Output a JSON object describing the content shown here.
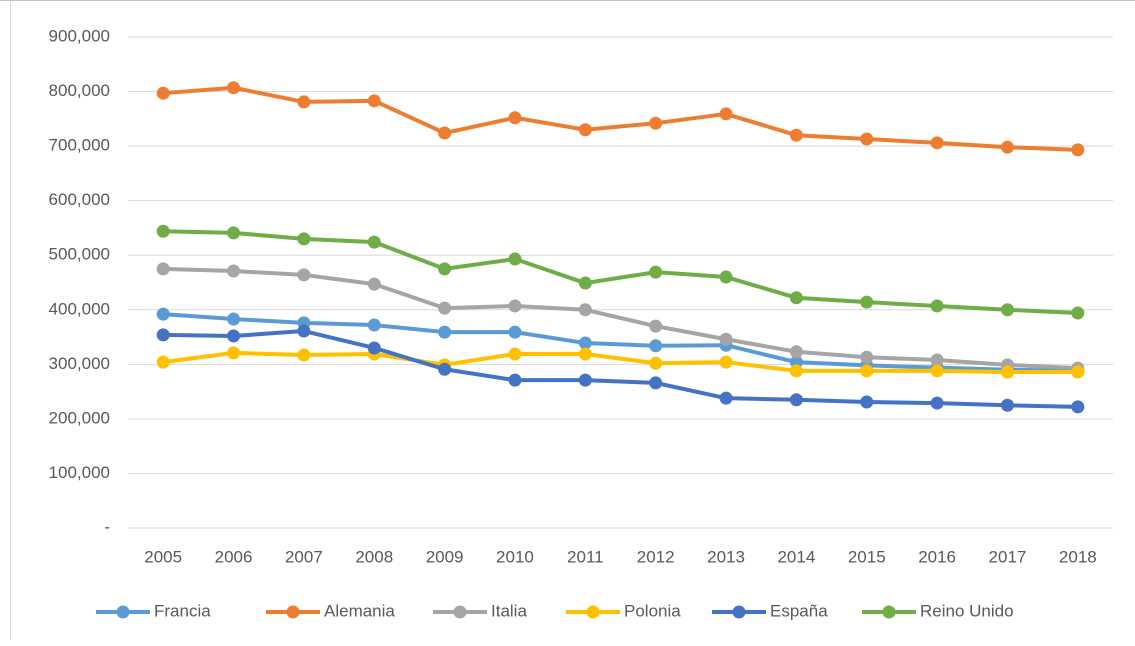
{
  "chart_data": {
    "type": "line",
    "categories": [
      "2005",
      "2006",
      "2007",
      "2008",
      "2009",
      "2010",
      "2011",
      "2012",
      "2013",
      "2014",
      "2015",
      "2016",
      "2017",
      "2018"
    ],
    "series": [
      {
        "name": "Francia",
        "color": "#5b9bd5",
        "values": [
          392000,
          383000,
          376000,
          372000,
          359000,
          359000,
          339000,
          334000,
          335000,
          304000,
          298000,
          294000,
          290000,
          288000
        ]
      },
      {
        "name": "Alemania",
        "color": "#ed7d31",
        "values": [
          797000,
          807000,
          781000,
          783000,
          724000,
          752000,
          730000,
          742000,
          759000,
          720000,
          713000,
          706000,
          698000,
          693000
        ]
      },
      {
        "name": "Italia",
        "color": "#a5a5a5",
        "values": [
          475000,
          471000,
          464000,
          447000,
          403000,
          407000,
          400000,
          370000,
          346000,
          323000,
          313000,
          308000,
          299000,
          293000
        ]
      },
      {
        "name": "Polonia",
        "color": "#ffc000",
        "values": [
          304000,
          321000,
          317000,
          319000,
          299000,
          319000,
          319000,
          302000,
          304000,
          288000,
          288000,
          288000,
          286000,
          286000
        ]
      },
      {
        "name": "España",
        "color": "#4472c4",
        "values": [
          354000,
          352000,
          361000,
          330000,
          291000,
          271000,
          271000,
          266000,
          238000,
          235000,
          231000,
          229000,
          225000,
          222000
        ]
      },
      {
        "name": "Reino Unido",
        "color": "#70ad47",
        "values": [
          544000,
          541000,
          530000,
          524000,
          475000,
          493000,
          449000,
          469000,
          460000,
          422000,
          414000,
          407000,
          400000,
          394000
        ]
      }
    ],
    "ylim": [
      0,
      900000
    ],
    "yticks": [
      {
        "value": 0,
        "label": "-"
      },
      {
        "value": 100000,
        "label": "100,000"
      },
      {
        "value": 200000,
        "label": "200,000"
      },
      {
        "value": 300000,
        "label": "300,000"
      },
      {
        "value": 400000,
        "label": "400,000"
      },
      {
        "value": 500000,
        "label": "500,000"
      },
      {
        "value": 600000,
        "label": "600,000"
      },
      {
        "value": 700000,
        "label": "700,000"
      },
      {
        "value": 800000,
        "label": "800,000"
      },
      {
        "value": 900000,
        "label": "900,000"
      }
    ],
    "grid": true,
    "legend": "bottom"
  }
}
